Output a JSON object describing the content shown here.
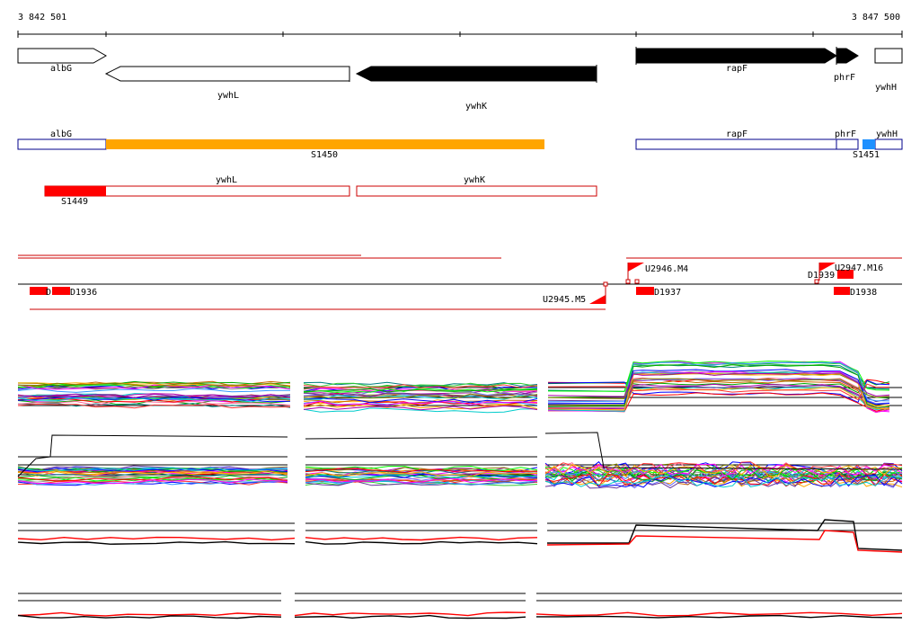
{
  "ruler": {
    "start_label": "3 842 501",
    "end_label": "3 847 500"
  },
  "colors": {
    "upregulated": "#ff0000",
    "segment_orange": "#ffa500",
    "segment_blue": "#1e90ff",
    "gene_outline": "#00008b",
    "annotation_outline": "#cc0000",
    "line_black": "#000000",
    "line_red": "#ff0000"
  },
  "genes_top": [
    {
      "name": "albG",
      "strand": "+",
      "fill": "white"
    },
    {
      "name": "ywhL",
      "strand": "-",
      "fill": "white"
    },
    {
      "name": "ywhK",
      "strand": "-",
      "fill": "black"
    },
    {
      "name": "rapF",
      "strand": "+",
      "fill": "black"
    },
    {
      "name": "phrF",
      "strand": "+",
      "fill": "black"
    },
    {
      "name": "ywhH",
      "strand": "+",
      "fill": "white"
    }
  ],
  "genes_middle": [
    {
      "name": "albG"
    },
    {
      "name": "rapF"
    },
    {
      "name": "phrF"
    },
    {
      "name": "ywhH"
    }
  ],
  "segments_middle": [
    {
      "name": "S1450",
      "color": "orange"
    },
    {
      "name": "S1451",
      "color": "blue"
    }
  ],
  "genes_lower": [
    {
      "name": "ywhL"
    },
    {
      "name": "ywhK"
    }
  ],
  "segments_lower": [
    {
      "name": "S1449",
      "color": "red"
    }
  ],
  "features": {
    "D1936": "D1936",
    "D1936_prefix": "D",
    "D1937": "D1937",
    "D1938": "D1938",
    "D1939": "D1939",
    "U2945": "U2945.M5",
    "U2946": "U2946.M4",
    "U2947": "U2947.M16"
  },
  "tracks": [
    {
      "name": "multi-condition-panel-1",
      "kind": "multi-color"
    },
    {
      "name": "multi-condition-panel-2",
      "kind": "multi-color"
    },
    {
      "name": "strand-panel-3",
      "kind": "red-black"
    },
    {
      "name": "strand-panel-4",
      "kind": "red-black"
    }
  ]
}
